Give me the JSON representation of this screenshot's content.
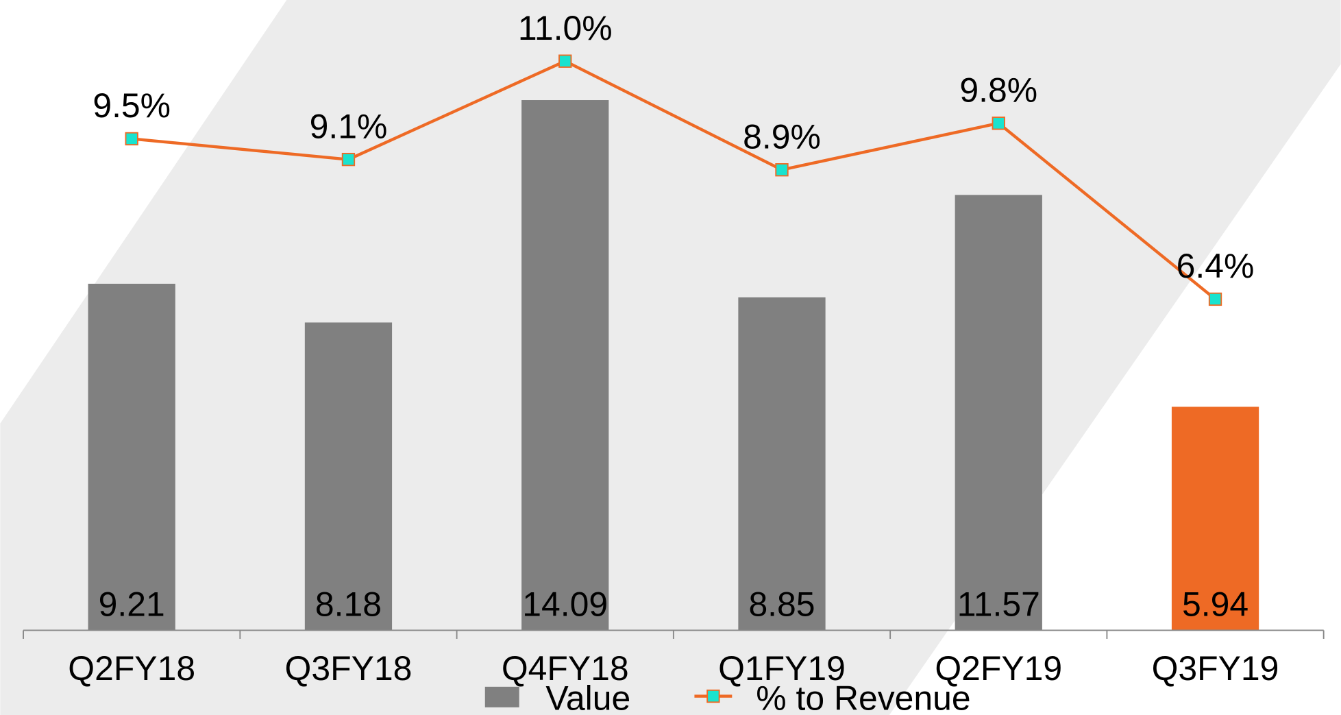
{
  "chart_data": {
    "type": "bar",
    "categories": [
      "Q2FY18",
      "Q3FY18",
      "Q4FY18",
      "Q1FY19",
      "Q2FY19",
      "Q3FY19"
    ],
    "series": [
      {
        "name": "Value",
        "type": "bar",
        "color": "#808080",
        "colors": [
          "#808080",
          "#808080",
          "#808080",
          "#808080",
          "#808080",
          "#ee6a25"
        ],
        "values": [
          9.21,
          8.18,
          14.09,
          8.85,
          11.57,
          5.94
        ]
      },
      {
        "name": "% to Revenue",
        "type": "line",
        "axis": "y2",
        "color": "#ee6a25",
        "marker_color": "#19e3cf",
        "values": [
          9.5,
          9.1,
          11.0,
          8.9,
          9.8,
          6.4
        ],
        "value_labels": [
          "9.5%",
          "9.1%",
          "11.0%",
          "8.9%",
          "9.8%",
          "6.4%"
        ]
      }
    ],
    "ylim": [
      0,
      16.5
    ],
    "y2lim": [
      0,
      12
    ],
    "legend": "bottom"
  }
}
